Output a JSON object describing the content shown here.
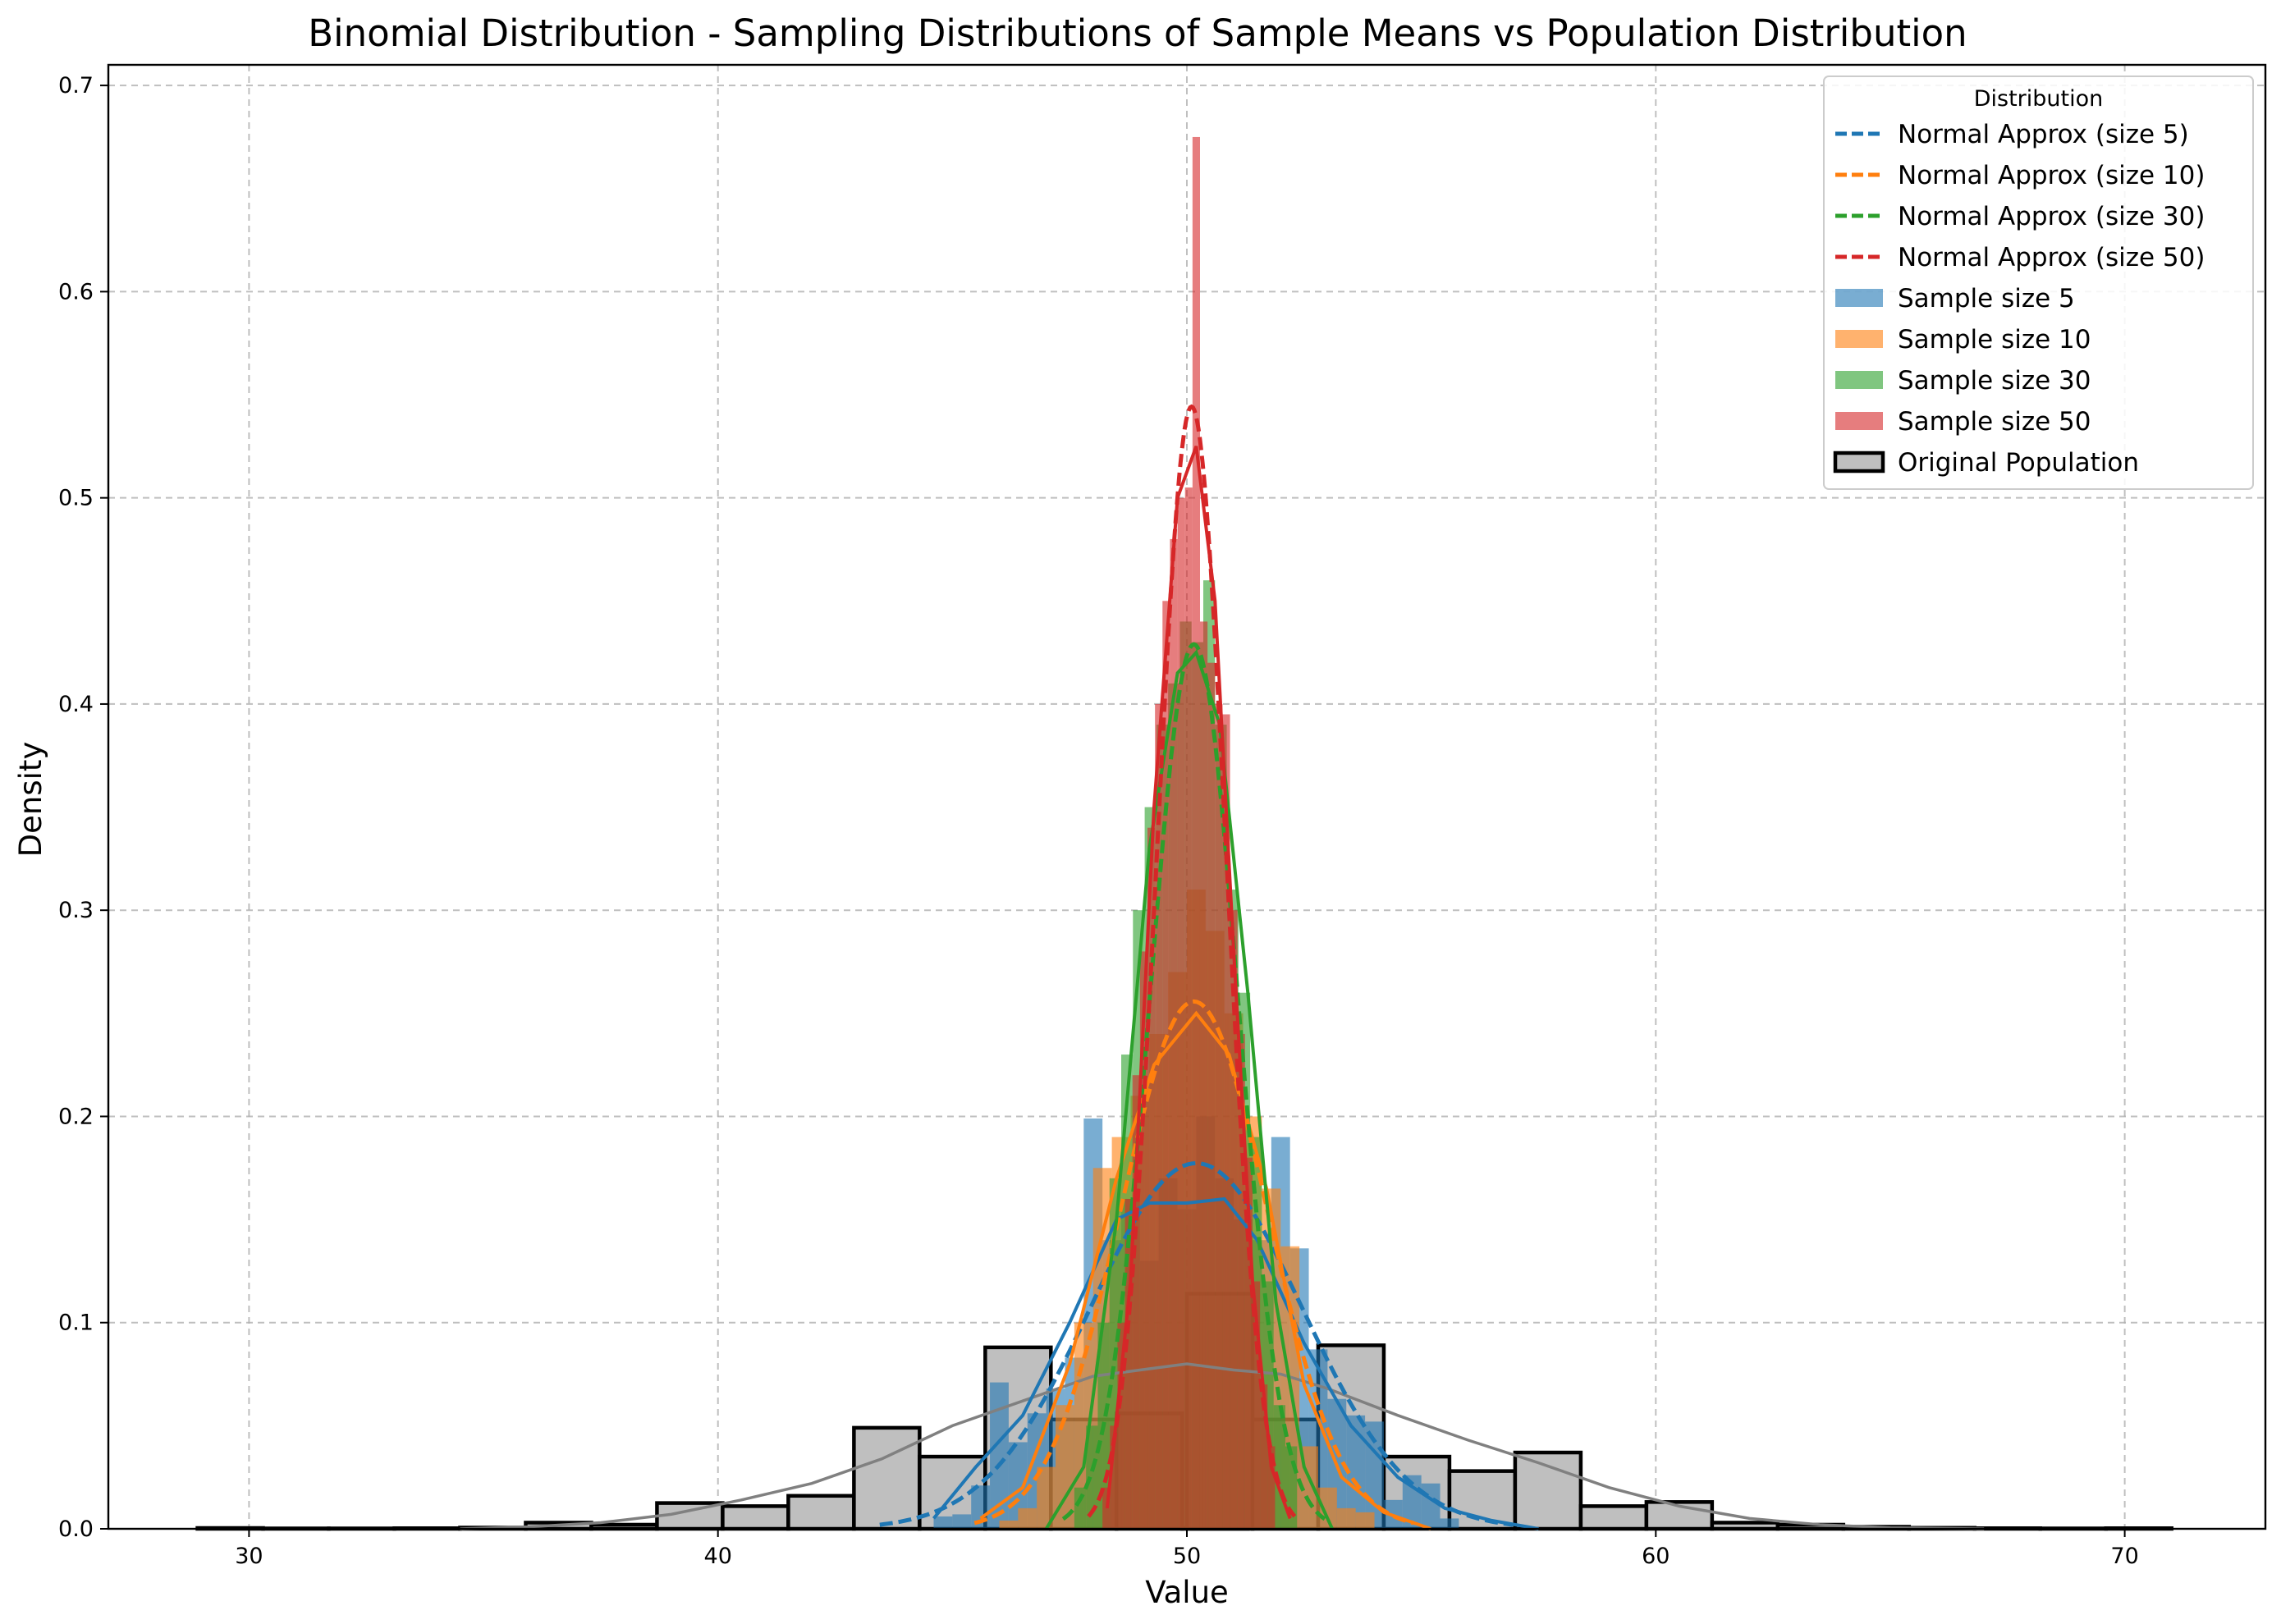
{
  "chart_data": {
    "type": "bar",
    "title": "Binomial Distribution - Sampling Distributions of Sample Means vs Population Distribution",
    "xlabel": "Value",
    "ylabel": "Density",
    "xlim": [
      27,
      73
    ],
    "ylim": [
      0,
      0.71
    ],
    "xticks": [
      30,
      40,
      50,
      60,
      70
    ],
    "yticks": [
      0.0,
      0.1,
      0.2,
      0.3,
      0.4,
      0.5,
      0.6,
      0.7
    ],
    "grid": true,
    "legend": {
      "title": "Distribution",
      "placement": "top-right",
      "entries": [
        {
          "label": "Normal Approx (size 5)",
          "kind": "dashed-line",
          "color": "#1f77b4"
        },
        {
          "label": "Normal Approx (size 10)",
          "kind": "dashed-line",
          "color": "#ff7f0e"
        },
        {
          "label": "Normal Approx (size 30)",
          "kind": "dashed-line",
          "color": "#2ca02c"
        },
        {
          "label": "Normal Approx (size 50)",
          "kind": "dashed-line",
          "color": "#d62728"
        },
        {
          "label": "Sample size 5",
          "kind": "patch",
          "color": "#1f77b4"
        },
        {
          "label": "Sample size 10",
          "kind": "patch",
          "color": "#ff7f0e"
        },
        {
          "label": "Sample size 30",
          "kind": "patch",
          "color": "#2ca02c"
        },
        {
          "label": "Sample size 50",
          "kind": "patch",
          "color": "#d62728"
        },
        {
          "label": "Original Population",
          "kind": "outlined-patch",
          "color": "#bfbfbf"
        }
      ]
    },
    "population": {
      "name": "Original Population",
      "color": "#bfbfbf",
      "edge_color": "#000000",
      "bin_width": 1.4,
      "bins": [
        [
          28.9,
          0.0004
        ],
        [
          30.3,
          0.0002
        ],
        [
          31.7,
          0.0002
        ],
        [
          33.1,
          0.0003
        ],
        [
          34.5,
          0.0006
        ],
        [
          35.9,
          0.003
        ],
        [
          37.3,
          0.002
        ],
        [
          38.7,
          0.0125
        ],
        [
          40.1,
          0.011
        ],
        [
          41.5,
          0.016
        ],
        [
          42.9,
          0.049
        ],
        [
          44.3,
          0.035
        ],
        [
          45.7,
          0.088
        ],
        [
          47.1,
          0.053
        ],
        [
          48.5,
          0.056
        ],
        [
          49.9,
          0.0005
        ],
        [
          50.0,
          0.114
        ],
        [
          51.4,
          0.053
        ],
        [
          52.8,
          0.089
        ],
        [
          54.2,
          0.035
        ],
        [
          55.6,
          0.028
        ],
        [
          57.0,
          0.037
        ],
        [
          58.4,
          0.011
        ],
        [
          59.8,
          0.013
        ],
        [
          61.2,
          0.003
        ],
        [
          62.6,
          0.002
        ],
        [
          64.0,
          0.001
        ],
        [
          65.4,
          0.0005
        ],
        [
          66.8,
          0.0003
        ],
        [
          68.2,
          0.0002
        ],
        [
          69.6,
          0.0003
        ]
      ],
      "kde": {
        "color": "#808080",
        "points": [
          [
            34.5,
            0.0
          ],
          [
            36,
            0.001
          ],
          [
            37.5,
            0.003
          ],
          [
            39,
            0.007
          ],
          [
            40.5,
            0.014
          ],
          [
            42,
            0.022
          ],
          [
            43.5,
            0.034
          ],
          [
            45,
            0.05
          ],
          [
            46.5,
            0.062
          ],
          [
            48,
            0.074
          ],
          [
            49,
            0.077
          ],
          [
            50,
            0.08
          ],
          [
            51,
            0.077
          ],
          [
            52,
            0.075
          ],
          [
            53,
            0.068
          ],
          [
            54.5,
            0.055
          ],
          [
            56,
            0.043
          ],
          [
            57.5,
            0.032
          ],
          [
            59,
            0.02
          ],
          [
            60.5,
            0.011
          ],
          [
            62,
            0.005
          ],
          [
            63.5,
            0.002
          ],
          [
            65,
            0.0005
          ],
          [
            67,
            0.0
          ]
        ]
      }
    },
    "series": [
      {
        "name": "Sample size 5",
        "color": "#1f77b4",
        "bin_width": 0.4,
        "bins": [
          [
            44.6,
            0.006
          ],
          [
            45.0,
            0.007
          ],
          [
            45.4,
            0.021
          ],
          [
            45.8,
            0.071
          ],
          [
            46.2,
            0.042
          ],
          [
            46.6,
            0.056
          ],
          [
            47.0,
            0.068
          ],
          [
            47.4,
            0.083
          ],
          [
            47.8,
            0.199
          ],
          [
            48.2,
            0.14
          ],
          [
            48.6,
            0.16
          ],
          [
            49.0,
            0.13
          ],
          [
            49.4,
            0.17
          ],
          [
            49.8,
            0.155
          ],
          [
            50.2,
            0.2
          ],
          [
            50.6,
            0.17
          ],
          [
            51.0,
            0.15
          ],
          [
            51.4,
            0.14
          ],
          [
            51.8,
            0.19
          ],
          [
            52.2,
            0.136
          ],
          [
            52.6,
            0.087
          ],
          [
            53.0,
            0.063
          ],
          [
            53.4,
            0.055
          ],
          [
            53.8,
            0.052
          ],
          [
            54.2,
            0.014
          ],
          [
            54.6,
            0.026
          ],
          [
            55.0,
            0.022
          ],
          [
            55.4,
            0.005
          ]
        ],
        "normal": {
          "mean": 50.2,
          "sd": 2.25
        },
        "kde": [
          [
            44.6,
            0.005
          ],
          [
            45.5,
            0.03
          ],
          [
            46.5,
            0.055
          ],
          [
            47.5,
            0.1
          ],
          [
            48.5,
            0.15
          ],
          [
            49.2,
            0.158
          ],
          [
            50,
            0.158
          ],
          [
            50.8,
            0.16
          ],
          [
            51.5,
            0.14
          ],
          [
            52.5,
            0.09
          ],
          [
            53.5,
            0.05
          ],
          [
            54.5,
            0.025
          ],
          [
            55.5,
            0.01
          ],
          [
            56.5,
            0.004
          ],
          [
            57.5,
            0.0
          ]
        ]
      },
      {
        "name": "Sample size 10",
        "color": "#ff7f0e",
        "bin_width": 0.4,
        "bins": [
          [
            46.0,
            0.004
          ],
          [
            46.4,
            0.01
          ],
          [
            46.8,
            0.03
          ],
          [
            47.2,
            0.06
          ],
          [
            47.6,
            0.1
          ],
          [
            48.0,
            0.175
          ],
          [
            48.4,
            0.19
          ],
          [
            48.8,
            0.21
          ],
          [
            49.2,
            0.24
          ],
          [
            49.6,
            0.27
          ],
          [
            50.0,
            0.31
          ],
          [
            50.4,
            0.29
          ],
          [
            50.8,
            0.25
          ],
          [
            51.2,
            0.2
          ],
          [
            51.6,
            0.165
          ],
          [
            52.0,
            0.137
          ],
          [
            52.4,
            0.04
          ],
          [
            52.8,
            0.02
          ],
          [
            53.2,
            0.01
          ],
          [
            53.6,
            0.008
          ]
        ],
        "normal": {
          "mean": 50.15,
          "sd": 1.56
        },
        "kde": [
          [
            45.6,
            0.005
          ],
          [
            46.5,
            0.02
          ],
          [
            47.5,
            0.08
          ],
          [
            48.5,
            0.17
          ],
          [
            49.3,
            0.225
          ],
          [
            50.2,
            0.25
          ],
          [
            50.9,
            0.23
          ],
          [
            51.7,
            0.165
          ],
          [
            52.5,
            0.07
          ],
          [
            53.3,
            0.025
          ],
          [
            54.2,
            0.008
          ],
          [
            55.2,
            0.0
          ]
        ]
      },
      {
        "name": "Sample size 30",
        "color": "#2ca02c",
        "bin_width": 0.25,
        "bins": [
          [
            47.6,
            0.02
          ],
          [
            47.85,
            0.05
          ],
          [
            48.1,
            0.1
          ],
          [
            48.35,
            0.17
          ],
          [
            48.6,
            0.23
          ],
          [
            48.85,
            0.3
          ],
          [
            49.1,
            0.35
          ],
          [
            49.35,
            0.39
          ],
          [
            49.6,
            0.41
          ],
          [
            49.85,
            0.44
          ],
          [
            50.1,
            0.43
          ],
          [
            50.35,
            0.46
          ],
          [
            50.6,
            0.39
          ],
          [
            50.85,
            0.31
          ],
          [
            51.1,
            0.26
          ],
          [
            51.35,
            0.19
          ],
          [
            51.6,
            0.12
          ],
          [
            51.85,
            0.06
          ],
          [
            52.1,
            0.04
          ]
        ],
        "normal": {
          "mean": 50.15,
          "sd": 0.93
        },
        "kde": [
          [
            47.0,
            0.0
          ],
          [
            47.8,
            0.03
          ],
          [
            48.5,
            0.15
          ],
          [
            49.2,
            0.33
          ],
          [
            49.8,
            0.415
          ],
          [
            50.2,
            0.425
          ],
          [
            50.7,
            0.39
          ],
          [
            51.3,
            0.26
          ],
          [
            51.9,
            0.11
          ],
          [
            52.5,
            0.03
          ],
          [
            53.1,
            0.0
          ]
        ]
      },
      {
        "name": "Sample size 50",
        "color": "#d62728",
        "bin_width": 0.16,
        "bins": [
          [
            48.2,
            0.02
          ],
          [
            48.36,
            0.05
          ],
          [
            48.52,
            0.1
          ],
          [
            48.68,
            0.16
          ],
          [
            48.84,
            0.22
          ],
          [
            49.0,
            0.28
          ],
          [
            49.16,
            0.34
          ],
          [
            49.32,
            0.4
          ],
          [
            49.48,
            0.45
          ],
          [
            49.64,
            0.48
          ],
          [
            49.8,
            0.5
          ],
          [
            49.96,
            0.505
          ],
          [
            50.12,
            0.675
          ],
          [
            50.28,
            0.44
          ],
          [
            50.44,
            0.42
          ],
          [
            50.6,
            0.4
          ],
          [
            50.76,
            0.395
          ],
          [
            50.92,
            0.3
          ],
          [
            51.08,
            0.24
          ],
          [
            51.24,
            0.18
          ],
          [
            51.4,
            0.12
          ],
          [
            51.56,
            0.07
          ],
          [
            51.72,
            0.04
          ]
        ],
        "normal": {
          "mean": 50.1,
          "sd": 0.733
        },
        "kde": [
          [
            48.3,
            0.01
          ],
          [
            48.8,
            0.12
          ],
          [
            49.3,
            0.35
          ],
          [
            49.8,
            0.5
          ],
          [
            50.2,
            0.525
          ],
          [
            50.6,
            0.45
          ],
          [
            51.0,
            0.28
          ],
          [
            51.4,
            0.12
          ],
          [
            51.8,
            0.03
          ],
          [
            52.2,
            0.005
          ]
        ]
      }
    ]
  }
}
